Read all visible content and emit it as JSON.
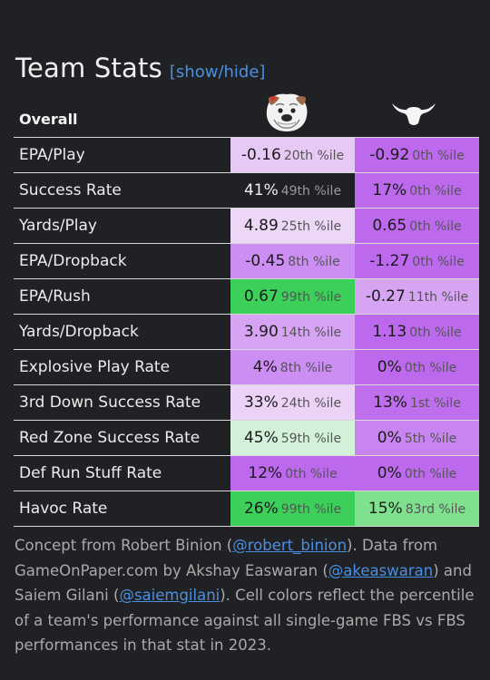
{
  "page": {
    "title": "Team Stats",
    "toggle_label": "[show/hide]"
  },
  "table": {
    "header_label": "Overall",
    "team_a_logo": "bulldog-logo-icon",
    "team_b_logo": "longhorn-logo-icon",
    "rows": [
      {
        "stat": "EPA/Play",
        "a_value": "-0.16",
        "a_pct": "20th %ile",
        "a_color": "#e7c9f5",
        "b_value": "-0.92",
        "b_pct": "0th %ile",
        "b_color": "#bc69ee"
      },
      {
        "stat": "Success Rate",
        "a_value": "41%",
        "a_pct": "49th %ile",
        "a_color": "#202124",
        "b_value": "17%",
        "b_pct": "0th %ile",
        "b_color": "#bc69ee"
      },
      {
        "stat": "Yards/Play",
        "a_value": "4.89",
        "a_pct": "25th %ile",
        "a_color": "#ecd7f7",
        "b_value": "0.65",
        "b_pct": "0th %ile",
        "b_color": "#bc69ee"
      },
      {
        "stat": "EPA/Dropback",
        "a_value": "-0.45",
        "a_pct": "8th %ile",
        "a_color": "#cc8ef2",
        "b_value": "-1.27",
        "b_pct": "0th %ile",
        "b_color": "#bc69ee"
      },
      {
        "stat": "EPA/Rush",
        "a_value": "0.67",
        "a_pct": "99th %ile",
        "a_color": "#3ccf5a",
        "b_value": "-0.27",
        "b_pct": "11th %ile",
        "b_color": "#d7a4f4"
      },
      {
        "stat": "Yards/Dropback",
        "a_value": "3.90",
        "a_pct": "14th %ile",
        "a_color": "#d7a4f4",
        "b_value": "1.13",
        "b_pct": "0th %ile",
        "b_color": "#bc69ee"
      },
      {
        "stat": "Explosive Play Rate",
        "a_value": "4%",
        "a_pct": "8th %ile",
        "a_color": "#cc8ef2",
        "b_value": "0%",
        "b_pct": "0th %ile",
        "b_color": "#bc69ee"
      },
      {
        "stat": "3rd Down Success Rate",
        "a_value": "33%",
        "a_pct": "24th %ile",
        "a_color": "#ebd3f7",
        "b_value": "13%",
        "b_pct": "1st %ile",
        "b_color": "#bf6fee"
      },
      {
        "stat": "Red Zone Success Rate",
        "a_value": "45%",
        "a_pct": "59th %ile",
        "a_color": "#d3f2d9",
        "b_value": "0%",
        "b_pct": "5th %ile",
        "b_color": "#c884f1"
      },
      {
        "stat": "Def Run Stuff Rate",
        "a_value": "12%",
        "a_pct": "0th %ile",
        "a_color": "#bc69ee",
        "b_value": "0%",
        "b_pct": "0th %ile",
        "b_color": "#bc69ee"
      },
      {
        "stat": "Havoc Rate",
        "a_value": "26%",
        "a_pct": "99th %ile",
        "a_color": "#3ccf5a",
        "b_value": "15%",
        "b_pct": "83rd %ile",
        "b_color": "#7fe08d"
      }
    ]
  },
  "footer": {
    "t1": "Concept from Robert Binion (",
    "l1": "@robert_binion",
    "t2": "). Data from GameOnPaper.com by Akshay Easwaran (",
    "l2": "@akeaswaran",
    "t3": ") and Saiem Gilani (",
    "l3": "@saiemgilani",
    "t4": "). Cell colors reflect the percentile of a team's performance against all single-game FBS vs FBS performances in that stat in 2023."
  }
}
